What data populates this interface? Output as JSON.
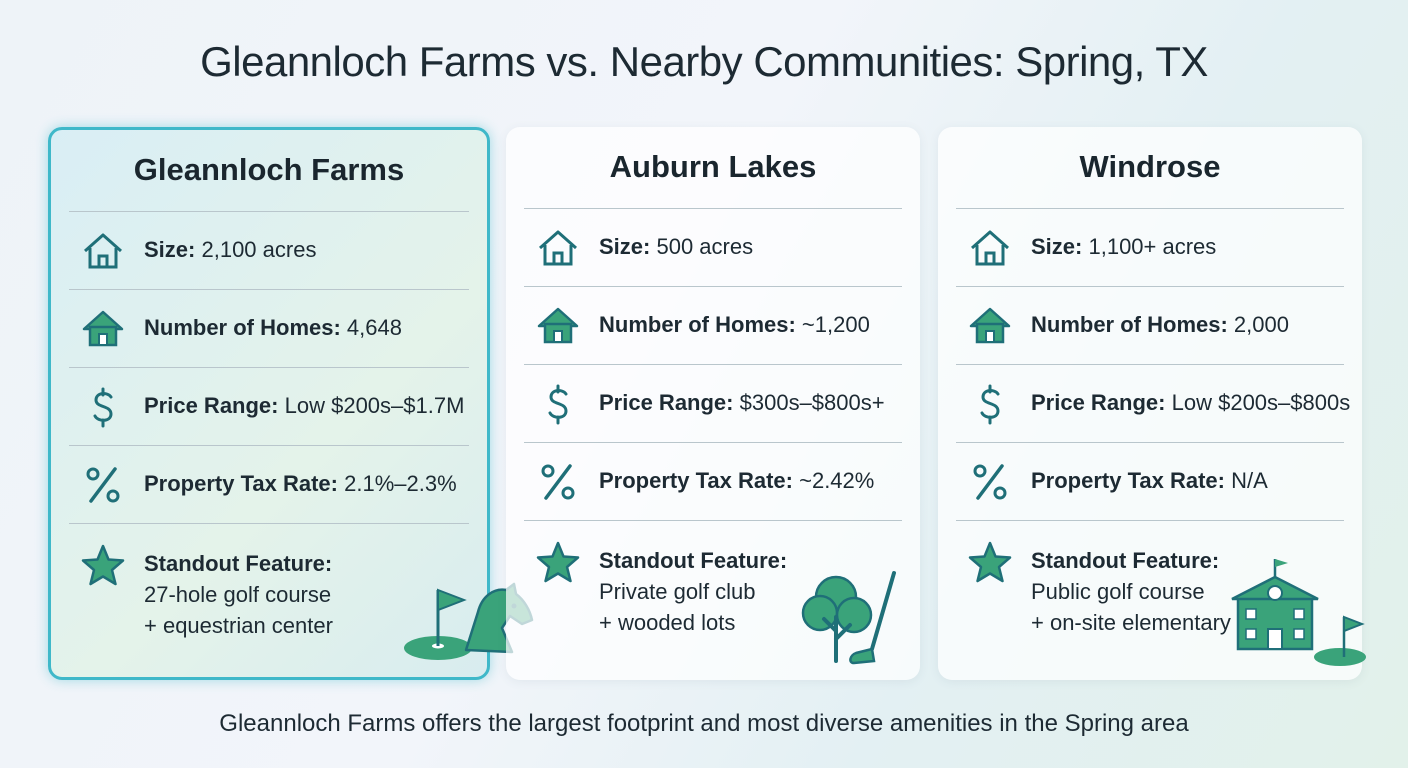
{
  "header": {
    "title": "Gleannloch Farms vs. Nearby Communities: Spring, TX"
  },
  "cards": [
    {
      "name": "Gleannloch Farms",
      "rows": [
        {
          "label": "Size:",
          "value": "2,100 acres"
        },
        {
          "label": "Number of Homes:",
          "value": "4,648"
        },
        {
          "label": "Price Range:",
          "value": "Low $200s–$1.7M"
        },
        {
          "label": "Property Tax Rate:",
          "value": "2.1%–2.3%"
        }
      ],
      "feature": {
        "label": "Standout Feature:",
        "lines": [
          "27-hole golf course",
          "+ equestrian center"
        ]
      }
    },
    {
      "name": "Auburn Lakes",
      "rows": [
        {
          "label": "Size:",
          "value": "500 acres"
        },
        {
          "label": "Number of Homes:",
          "value": "~1,200"
        },
        {
          "label": "Price Range:",
          "value": "$300s–$800s+"
        },
        {
          "label": "Property Tax Rate:",
          "value": "~2.42%"
        }
      ],
      "feature": {
        "label": "Standout Feature:",
        "lines": [
          "Private golf club",
          "+ wooded lots"
        ]
      }
    },
    {
      "name": "Windrose",
      "rows": [
        {
          "label": "Size:",
          "value": "1,100+ acres"
        },
        {
          "label": "Number of Homes:",
          "value": "2,000"
        },
        {
          "label": "Price Range:",
          "value": "Low $200s–$800s"
        },
        {
          "label": "Property Tax Rate:",
          "value": "N/A"
        }
      ],
      "feature": {
        "label": "Standout Feature:",
        "lines": [
          "Public golf course",
          "+ on-site elementary"
        ]
      }
    }
  ],
  "footer": {
    "text": "Gleannloch Farms offers the largest footprint and most diverse amenities in the Spring area"
  }
}
